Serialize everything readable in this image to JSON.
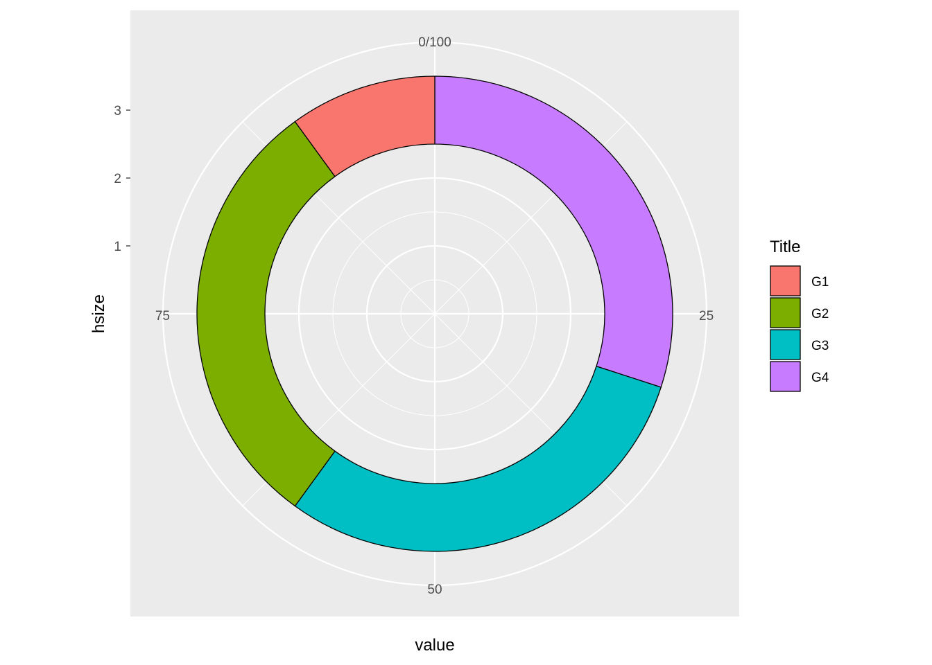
{
  "chart_data": {
    "type": "pie",
    "subtype": "donut (polar coordinates)",
    "xlabel": "value",
    "ylabel": "hsize",
    "theta_ticks": [
      "0/100",
      "25",
      "50",
      "75"
    ],
    "theta_tick_values": [
      0,
      25,
      50,
      75
    ],
    "theta_range": [
      0,
      100
    ],
    "r_ticks": [
      "1",
      "2",
      "3"
    ],
    "r_tick_values": [
      1,
      2,
      3
    ],
    "r_range": [
      0,
      3.5
    ],
    "ring_inner": 2.5,
    "ring_outer": 3.5,
    "series": [
      {
        "name": "G1",
        "value": 10,
        "color": "#F8766D"
      },
      {
        "name": "G2",
        "value": 30,
        "color": "#7CAE00"
      },
      {
        "name": "G3",
        "value": 30,
        "color": "#00BFC4"
      },
      {
        "name": "G4",
        "value": 30,
        "color": "#C77CFF"
      }
    ],
    "stack_order": [
      "G4",
      "G3",
      "G2",
      "G1"
    ],
    "legend": {
      "title": "Title",
      "position": "right"
    },
    "grid": true,
    "panel_background": "#EBEBEB",
    "grid_color": "#FFFFFF",
    "outline_color": "#000000"
  }
}
